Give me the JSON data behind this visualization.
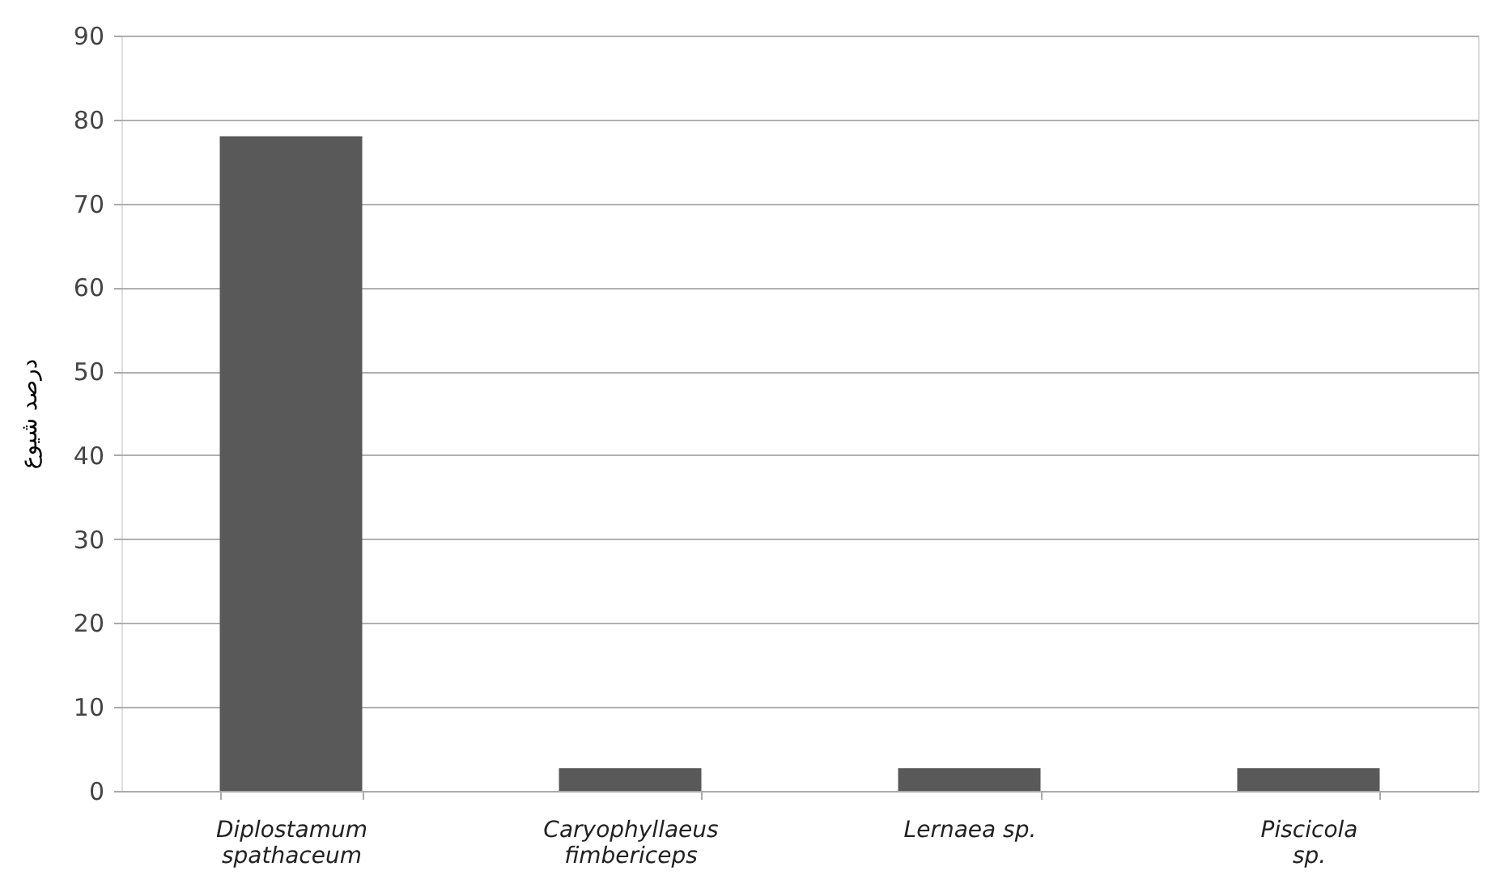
{
  "chart_data": {
    "type": "bar",
    "ylabel": "درصد شیوع",
    "categories": [
      "Diplostamum spathaceum",
      "Caryophyllaeus fimbericeps",
      "Lernaea sp.",
      "Piscicola sp."
    ],
    "values": [
      78,
      2.7,
      2.7,
      2.7
    ],
    "color": "#595959",
    "ylim": [
      0,
      90
    ],
    "yticks": [
      0,
      10,
      20,
      30,
      40,
      50,
      60,
      70,
      80,
      90
    ],
    "grid": "y",
    "legend": false
  }
}
